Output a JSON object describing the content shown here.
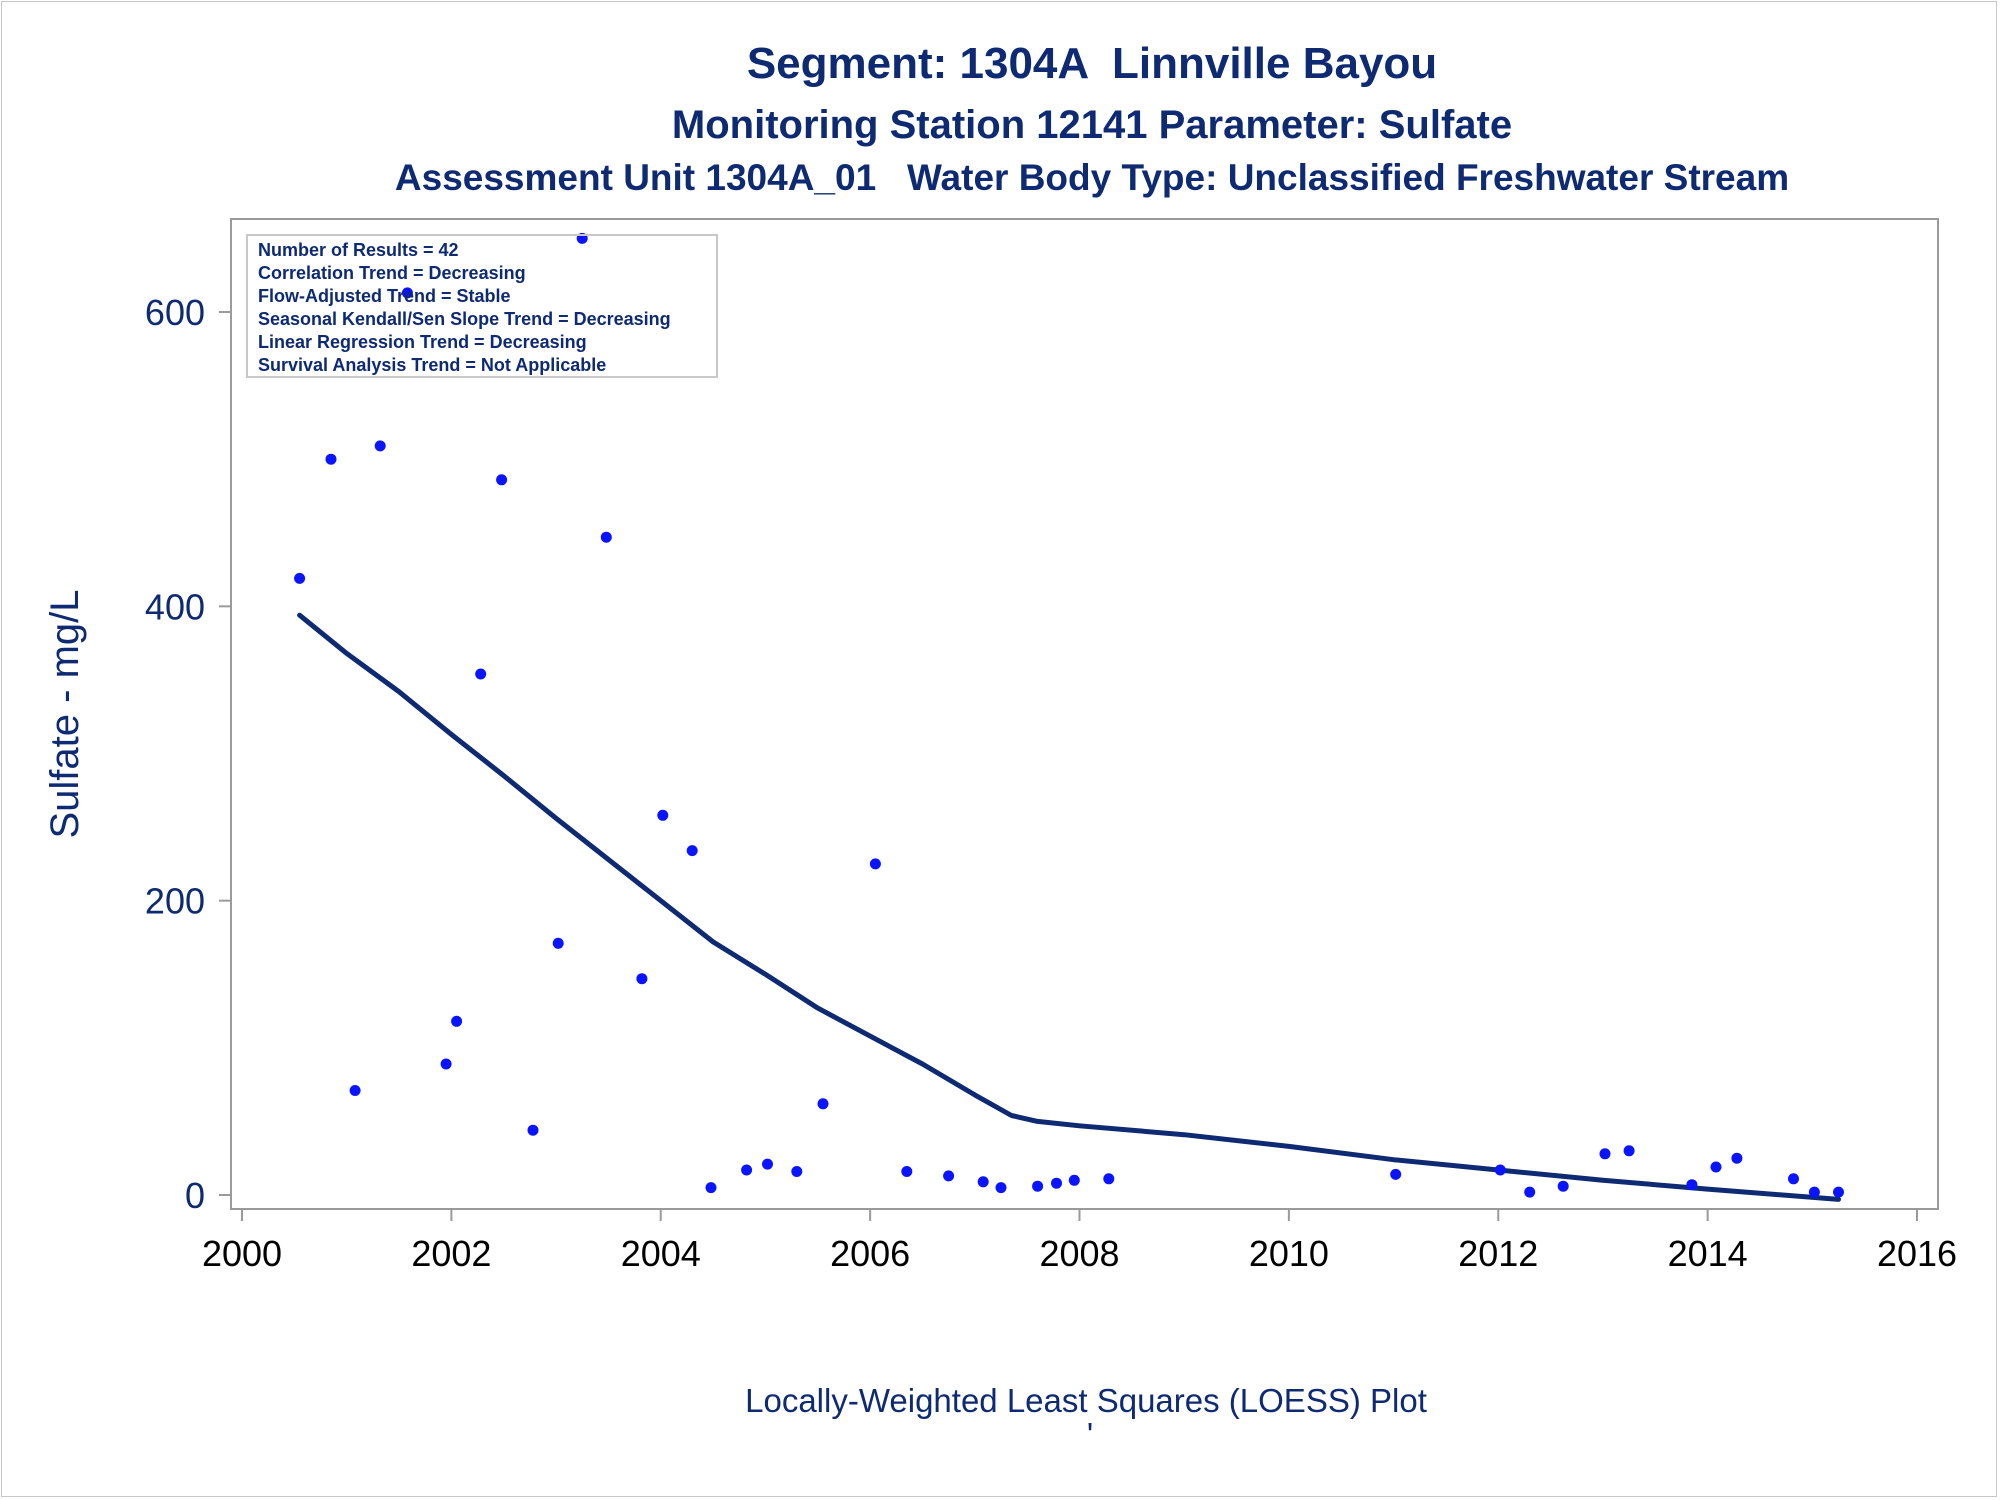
{
  "chart_data": {
    "type": "scatter",
    "title": "Segment: 1304A  Linnville Bayou",
    "subtitle": "Monitoring Station 12141 Parameter: Sulfate",
    "subtitle2": "Assessment Unit 1304A_01   Water Body Type: Unclassified Freshwater Stream",
    "ylabel": "Sulfate - mg/L",
    "xlabel": "",
    "footnote": "Locally-Weighted Least Squares (LOESS) Plot",
    "footnote_mark": "'",
    "xlim": [
      2000,
      2016
    ],
    "ylim": [
      -10,
      660
    ],
    "x_ticks": [
      2000,
      2002,
      2004,
      2006,
      2008,
      2010,
      2012,
      2014,
      2016
    ],
    "y_ticks": [
      0,
      200,
      400,
      600
    ],
    "grid": false,
    "colors": {
      "points": "#0a14ff",
      "loess": "#0d2a73",
      "text": "#0d2a73",
      "frame": "#9a9a9a"
    },
    "inset_placement": "top-left",
    "inset_lines": [
      "Number of Results = 42",
      "Correlation Trend = Decreasing",
      "Flow-Adjusted Trend = Stable",
      "Seasonal Kendall/Sen Slope Trend = Decreasing",
      "Linear Regression Trend = Decreasing",
      "Survival Analysis Trend = Not Applicable"
    ],
    "points": [
      {
        "x": 2000.55,
        "y": 419
      },
      {
        "x": 2000.85,
        "y": 500
      },
      {
        "x": 2001.08,
        "y": 71
      },
      {
        "x": 2001.32,
        "y": 509
      },
      {
        "x": 2001.58,
        "y": 613
      },
      {
        "x": 2001.95,
        "y": 89
      },
      {
        "x": 2002.05,
        "y": 118
      },
      {
        "x": 2002.28,
        "y": 354
      },
      {
        "x": 2002.48,
        "y": 486
      },
      {
        "x": 2002.78,
        "y": 44
      },
      {
        "x": 2003.02,
        "y": 171
      },
      {
        "x": 2003.25,
        "y": 650
      },
      {
        "x": 2003.48,
        "y": 447
      },
      {
        "x": 2003.82,
        "y": 147
      },
      {
        "x": 2004.02,
        "y": 258
      },
      {
        "x": 2004.3,
        "y": 234
      },
      {
        "x": 2004.48,
        "y": 5
      },
      {
        "x": 2004.82,
        "y": 17
      },
      {
        "x": 2005.02,
        "y": 21
      },
      {
        "x": 2005.3,
        "y": 16
      },
      {
        "x": 2005.55,
        "y": 62
      },
      {
        "x": 2006.05,
        "y": 225
      },
      {
        "x": 2006.35,
        "y": 16
      },
      {
        "x": 2006.75,
        "y": 13
      },
      {
        "x": 2007.08,
        "y": 9
      },
      {
        "x": 2007.25,
        "y": 5
      },
      {
        "x": 2007.6,
        "y": 6
      },
      {
        "x": 2007.78,
        "y": 8
      },
      {
        "x": 2007.95,
        "y": 10
      },
      {
        "x": 2008.28,
        "y": 11
      },
      {
        "x": 2011.02,
        "y": 14
      },
      {
        "x": 2012.02,
        "y": 17
      },
      {
        "x": 2012.3,
        "y": 2
      },
      {
        "x": 2012.62,
        "y": 6
      },
      {
        "x": 2013.02,
        "y": 28
      },
      {
        "x": 2013.25,
        "y": 30
      },
      {
        "x": 2013.85,
        "y": 7
      },
      {
        "x": 2014.08,
        "y": 19
      },
      {
        "x": 2014.28,
        "y": 25
      },
      {
        "x": 2014.82,
        "y": 11
      },
      {
        "x": 2015.02,
        "y": 2
      },
      {
        "x": 2015.25,
        "y": 2
      }
    ],
    "loess": [
      {
        "x": 2000.55,
        "y": 394
      },
      {
        "x": 2001.0,
        "y": 368
      },
      {
        "x": 2001.5,
        "y": 342
      },
      {
        "x": 2002.0,
        "y": 313
      },
      {
        "x": 2002.5,
        "y": 285
      },
      {
        "x": 2003.0,
        "y": 256
      },
      {
        "x": 2003.5,
        "y": 228
      },
      {
        "x": 2004.0,
        "y": 200
      },
      {
        "x": 2004.5,
        "y": 172
      },
      {
        "x": 2005.0,
        "y": 150
      },
      {
        "x": 2005.5,
        "y": 127
      },
      {
        "x": 2006.0,
        "y": 108
      },
      {
        "x": 2006.5,
        "y": 89
      },
      {
        "x": 2007.0,
        "y": 68
      },
      {
        "x": 2007.35,
        "y": 54
      },
      {
        "x": 2007.6,
        "y": 50
      },
      {
        "x": 2008.0,
        "y": 47
      },
      {
        "x": 2009.0,
        "y": 41
      },
      {
        "x": 2010.0,
        "y": 33
      },
      {
        "x": 2011.0,
        "y": 24
      },
      {
        "x": 2012.0,
        "y": 17
      },
      {
        "x": 2013.0,
        "y": 10
      },
      {
        "x": 2014.0,
        "y": 4
      },
      {
        "x": 2015.25,
        "y": -3
      }
    ]
  }
}
